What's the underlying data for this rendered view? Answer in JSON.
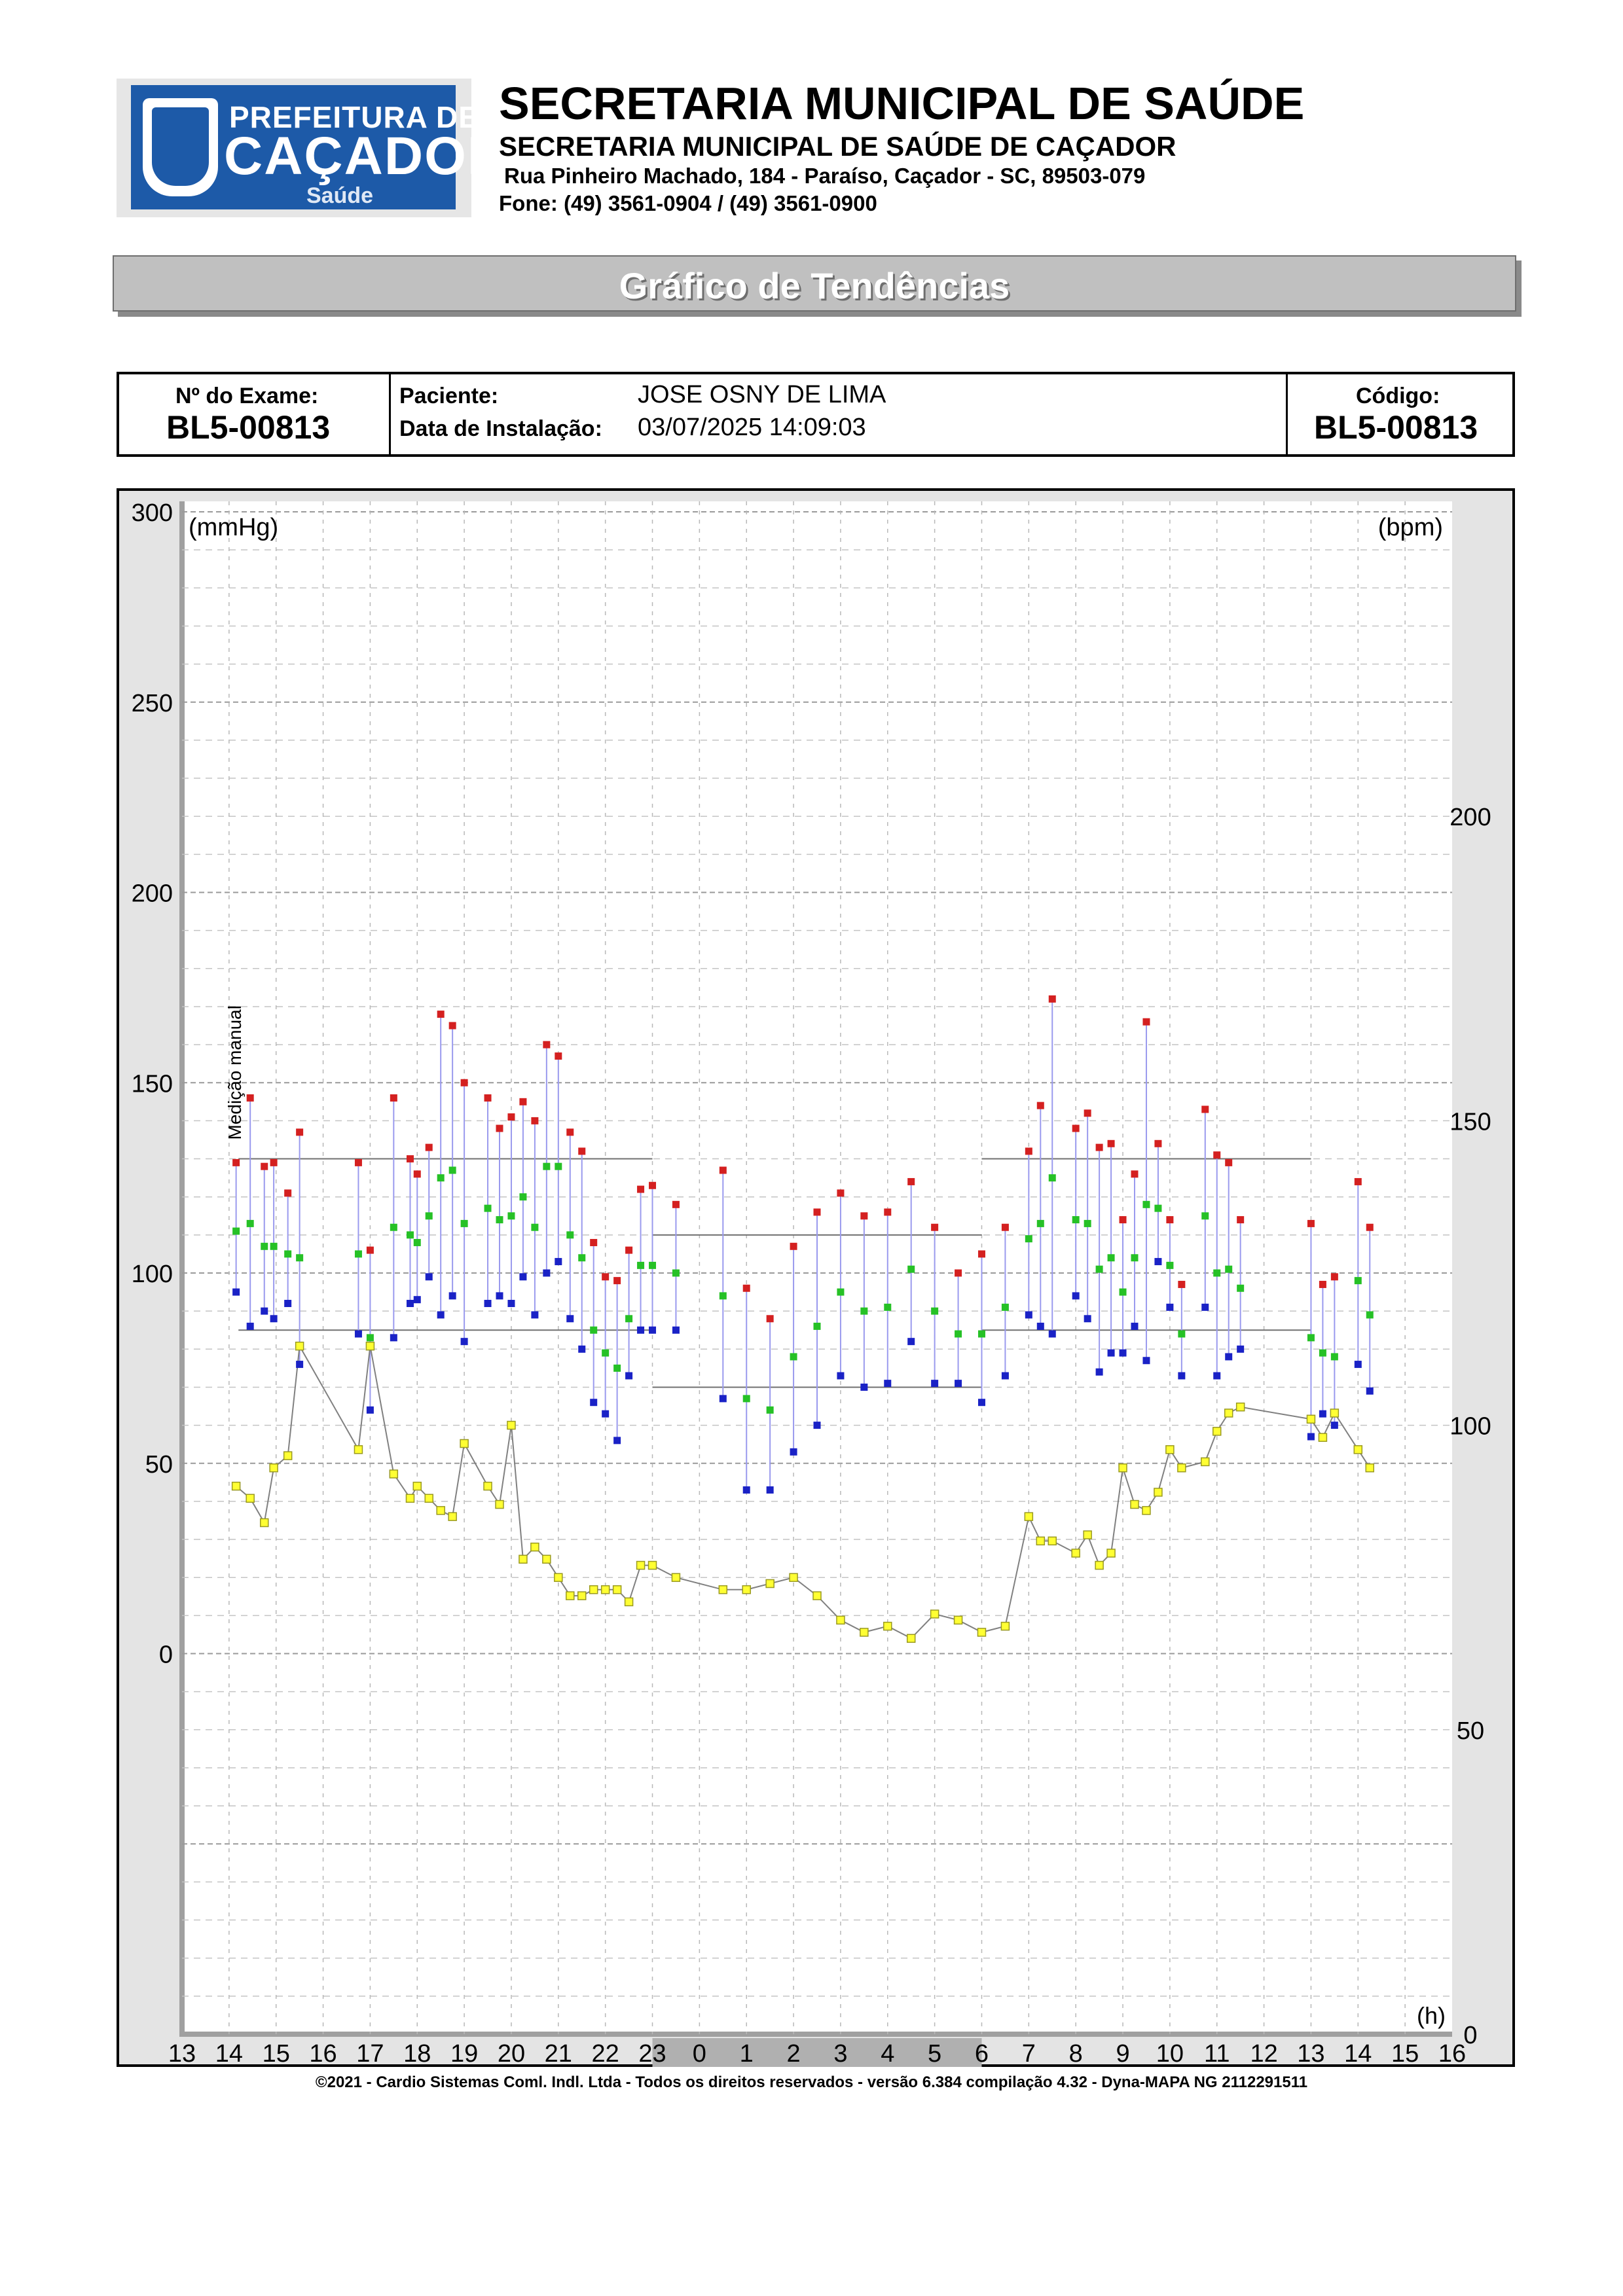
{
  "header": {
    "logo": {
      "line1": "PREFEITURA DE",
      "line2": "CAÇADOR",
      "line3": "Saúde"
    },
    "title": "SECRETARIA MUNICIPAL DE SAÚDE",
    "subtitle": "SECRETARIA MUNICIPAL DE SAÚDE DE CAÇADOR",
    "address": "Rua Pinheiro Machado, 184 - Paraíso, Caçador - SC, 89503-079",
    "phone": "Fone: (49) 3561-0904  / (49) 3561-0900"
  },
  "report_title": "Gráfico de Tendências",
  "exam": {
    "exam_no_label": "Nº do Exame:",
    "exam_no": "BL5-00813",
    "patient_label": "Paciente:",
    "patient": "JOSE OSNY DE LIMA",
    "install_label": "Data de Instalação:",
    "install_date": "03/07/2025 14:09:03",
    "code_label": "Código:",
    "code": "BL5-00813"
  },
  "footer": "©2021 - Cardio Sistemas Coml. Indl. Ltda - Todos os direitos reservados - versão 6.384 compilação 4.32 - Dyna-MAPA NG 2112291511",
  "chart_data": {
    "type": "scatter",
    "left_unit": "(mmHg)",
    "right_unit": "(bpm)",
    "x_unit": "(h)",
    "annotation": "Medição manual",
    "annotation_x": 14.25,
    "x_ticks": [
      "13",
      "14",
      "15",
      "16",
      "17",
      "18",
      "19",
      "20",
      "21",
      "22",
      "23",
      "0",
      "1",
      "2",
      "3",
      "4",
      "5",
      "6",
      "7",
      "8",
      "9",
      "10",
      "11",
      "12",
      "13",
      "14",
      "15",
      "16"
    ],
    "left_ticks": [
      300,
      250,
      200,
      150,
      100,
      50,
      0
    ],
    "right_ticks": [
      200,
      150,
      100,
      50,
      0
    ],
    "xlim": [
      13,
      40
    ],
    "left_ylim": [
      -100,
      300
    ],
    "right_ylim": [
      0,
      250
    ],
    "grid": true,
    "night_period": [
      23,
      30
    ],
    "limits": [
      {
        "x": [
          14.2,
          23
        ],
        "y": 130
      },
      {
        "x": [
          14.2,
          23
        ],
        "y": 85
      },
      {
        "x": [
          23,
          30
        ],
        "y": 110
      },
      {
        "x": [
          23,
          30
        ],
        "y": 70
      },
      {
        "x": [
          30,
          37
        ],
        "y": 130
      },
      {
        "x": [
          30,
          37
        ],
        "y": 85
      }
    ],
    "colors": {
      "systolic": "#d42020",
      "mean": "#26c126",
      "diastolic": "#1a22c6",
      "heart_rate": "#ffff33",
      "hr_line": "#808080",
      "bp_line": "#9a9aee"
    },
    "measurements": [
      {
        "t": 14.15,
        "sys": 129,
        "mean": 111,
        "dia": 95,
        "hr": 90
      },
      {
        "t": 14.45,
        "sys": 146,
        "mean": 113,
        "dia": 86,
        "hr": 88
      },
      {
        "t": 14.75,
        "sys": 128,
        "mean": 107,
        "dia": 90,
        "hr": 84
      },
      {
        "t": 14.95,
        "sys": 129,
        "mean": 107,
        "dia": 88,
        "hr": 93
      },
      {
        "t": 15.25,
        "sys": 121,
        "mean": 105,
        "dia": 92,
        "hr": 95
      },
      {
        "t": 15.5,
        "sys": 137,
        "mean": 104,
        "dia": 76,
        "hr": 113
      },
      {
        "t": 16.75,
        "sys": 129,
        "mean": 105,
        "dia": 84,
        "hr": 96
      },
      {
        "t": 17.0,
        "sys": 106,
        "mean": 83,
        "dia": 64,
        "hr": 113
      },
      {
        "t": 17.5,
        "sys": 146,
        "mean": 112,
        "dia": 83,
        "hr": 92
      },
      {
        "t": 17.85,
        "sys": 130,
        "mean": 110,
        "dia": 92,
        "hr": 88
      },
      {
        "t": 18.0,
        "sys": 126,
        "mean": 108,
        "dia": 93,
        "hr": 90
      },
      {
        "t": 18.25,
        "sys": 133,
        "mean": 115,
        "dia": 99,
        "hr": 88
      },
      {
        "t": 18.5,
        "sys": 168,
        "mean": 125,
        "dia": 89,
        "hr": 86
      },
      {
        "t": 18.75,
        "sys": 165,
        "mean": 127,
        "dia": 94,
        "hr": 85
      },
      {
        "t": 19.0,
        "sys": 150,
        "mean": 113,
        "dia": 82,
        "hr": 97
      },
      {
        "t": 19.5,
        "sys": 146,
        "mean": 117,
        "dia": 92,
        "hr": 90
      },
      {
        "t": 19.75,
        "sys": 138,
        "mean": 114,
        "dia": 94,
        "hr": 87
      },
      {
        "t": 20.0,
        "sys": 141,
        "mean": 115,
        "dia": 92,
        "hr": 100
      },
      {
        "t": 20.25,
        "sys": 145,
        "mean": 120,
        "dia": 99,
        "hr": 78
      },
      {
        "t": 20.5,
        "sys": 140,
        "mean": 112,
        "dia": 89,
        "hr": 80
      },
      {
        "t": 20.75,
        "sys": 160,
        "mean": 128,
        "dia": 100,
        "hr": 78
      },
      {
        "t": 21.0,
        "sys": 157,
        "mean": 128,
        "dia": 103,
        "hr": 75
      },
      {
        "t": 21.25,
        "sys": 137,
        "mean": 110,
        "dia": 88,
        "hr": 72
      },
      {
        "t": 21.5,
        "sys": 132,
        "mean": 104,
        "dia": 80,
        "hr": 72
      },
      {
        "t": 21.75,
        "sys": 108,
        "mean": 85,
        "dia": 66,
        "hr": 73
      },
      {
        "t": 22.0,
        "sys": 99,
        "mean": 79,
        "dia": 63,
        "hr": 73
      },
      {
        "t": 22.25,
        "sys": 98,
        "mean": 75,
        "dia": 56,
        "hr": 73
      },
      {
        "t": 22.5,
        "sys": 106,
        "mean": 88,
        "dia": 73,
        "hr": 71
      },
      {
        "t": 22.75,
        "sys": 122,
        "mean": 102,
        "dia": 85,
        "hr": 77
      },
      {
        "t": 23.0,
        "sys": 123,
        "mean": 102,
        "dia": 85,
        "hr": 77
      },
      {
        "t": 23.5,
        "sys": 118,
        "mean": 100,
        "dia": 85,
        "hr": 75
      },
      {
        "t": 24.5,
        "sys": 127,
        "mean": 94,
        "dia": 67,
        "hr": 73
      },
      {
        "t": 25.0,
        "sys": 96,
        "mean": 67,
        "dia": 43,
        "hr": 73
      },
      {
        "t": 25.5,
        "sys": 88,
        "mean": 64,
        "dia": 43,
        "hr": 74
      },
      {
        "t": 26.0,
        "sys": 107,
        "mean": 78,
        "dia": 53,
        "hr": 75
      },
      {
        "t": 26.5,
        "sys": 116,
        "mean": 86,
        "dia": 60,
        "hr": 72
      },
      {
        "t": 27.0,
        "sys": 121,
        "mean": 95,
        "dia": 73,
        "hr": 68
      },
      {
        "t": 27.5,
        "sys": 115,
        "mean": 90,
        "dia": 70,
        "hr": 66
      },
      {
        "t": 28.0,
        "sys": 116,
        "mean": 91,
        "dia": 71,
        "hr": 67
      },
      {
        "t": 28.5,
        "sys": 124,
        "mean": 101,
        "dia": 82,
        "hr": 65
      },
      {
        "t": 29.0,
        "sys": 112,
        "mean": 90,
        "dia": 71,
        "hr": 69
      },
      {
        "t": 29.5,
        "sys": 100,
        "mean": 84,
        "dia": 71,
        "hr": 68
      },
      {
        "t": 30.0,
        "sys": 105,
        "mean": 84,
        "dia": 66,
        "hr": 66
      },
      {
        "t": 30.5,
        "sys": 112,
        "mean": 91,
        "dia": 73,
        "hr": 67
      },
      {
        "t": 31.0,
        "sys": 132,
        "mean": 109,
        "dia": 89,
        "hr": 85
      },
      {
        "t": 31.25,
        "sys": 144,
        "mean": 113,
        "dia": 86,
        "hr": 81
      },
      {
        "t": 31.5,
        "sys": 172,
        "mean": 125,
        "dia": 84,
        "hr": 81
      },
      {
        "t": 32.0,
        "sys": 138,
        "mean": 114,
        "dia": 94,
        "hr": 79
      },
      {
        "t": 32.25,
        "sys": 142,
        "mean": 113,
        "dia": 88,
        "hr": 82
      },
      {
        "t": 32.5,
        "sys": 133,
        "mean": 101,
        "dia": 74,
        "hr": 77
      },
      {
        "t": 32.75,
        "sys": 134,
        "mean": 104,
        "dia": 79,
        "hr": 79
      },
      {
        "t": 33.0,
        "sys": 114,
        "mean": 95,
        "dia": 79,
        "hr": 93
      },
      {
        "t": 33.25,
        "sys": 126,
        "mean": 104,
        "dia": 86,
        "hr": 87
      },
      {
        "t": 33.5,
        "sys": 166,
        "mean": 118,
        "dia": 77,
        "hr": 86
      },
      {
        "t": 33.75,
        "sys": 134,
        "mean": 117,
        "dia": 103,
        "hr": 89
      },
      {
        "t": 34.0,
        "sys": 114,
        "mean": 102,
        "dia": 91,
        "hr": 96
      },
      {
        "t": 34.25,
        "sys": 97,
        "mean": 84,
        "dia": 73,
        "hr": 93
      },
      {
        "t": 34.75,
        "sys": 143,
        "mean": 115,
        "dia": 91,
        "hr": 94
      },
      {
        "t": 35.0,
        "sys": 131,
        "mean": 100,
        "dia": 73,
        "hr": 99
      },
      {
        "t": 35.25,
        "sys": 129,
        "mean": 101,
        "dia": 78,
        "hr": 102
      },
      {
        "t": 35.5,
        "sys": 114,
        "mean": 96,
        "dia": 80,
        "hr": 103
      },
      {
        "t": 37.0,
        "sys": 113,
        "mean": 83,
        "dia": 57,
        "hr": 101
      },
      {
        "t": 37.25,
        "sys": 97,
        "mean": 79,
        "dia": 63,
        "hr": 98
      },
      {
        "t": 37.5,
        "sys": 99,
        "mean": 78,
        "dia": 60,
        "hr": 102
      },
      {
        "t": 38.0,
        "sys": 124,
        "mean": 98,
        "dia": 76,
        "hr": 96
      },
      {
        "t": 38.25,
        "sys": 112,
        "mean": 89,
        "dia": 69,
        "hr": 93
      }
    ]
  }
}
